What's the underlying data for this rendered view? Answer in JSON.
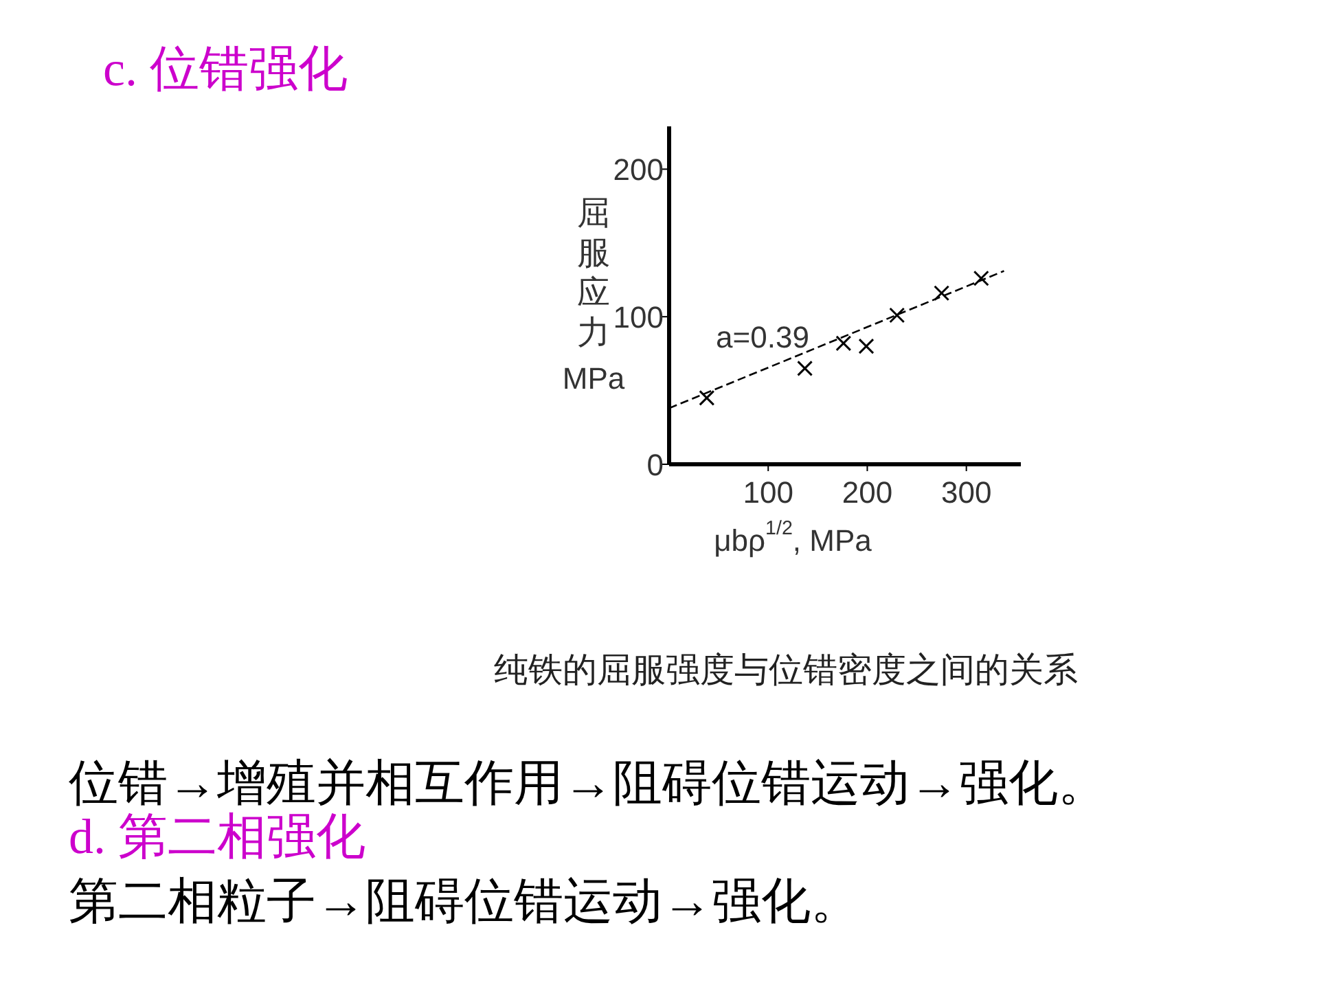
{
  "chart_data": {
    "type": "scatter",
    "title": "c. 位错强化",
    "xlabel": "μbρ$^{1/2}$, MPa",
    "ylabel": "屈服应力\nMPa",
    "xlim": [
      0,
      355
    ],
    "ylim": [
      0,
      229
    ],
    "xticks": [
      100,
      200,
      300
    ],
    "yticks": [
      0,
      100,
      200
    ],
    "series": [
      {
        "marker": "cross",
        "color": "#000000",
        "x": [
          38,
          137,
          176,
          199,
          230,
          275,
          315
        ],
        "values": [
          45,
          65,
          82,
          80,
          101,
          116,
          126
        ]
      },
      {
        "type": "line",
        "line_style": "dashed",
        "color": "#000000",
        "x": [
          0,
          338
        ],
        "values": [
          38,
          131
        ]
      }
    ],
    "annotations": [
      "a=0.39",
      "纯铁的屈服强度与位错密度之间的关系",
      "位错→增殖并相互作用→阻碍位错运动→强化。",
      "d.  第二相强化",
      "第二相粒子→阻碍位错运动→强化。"
    ]
  }
}
